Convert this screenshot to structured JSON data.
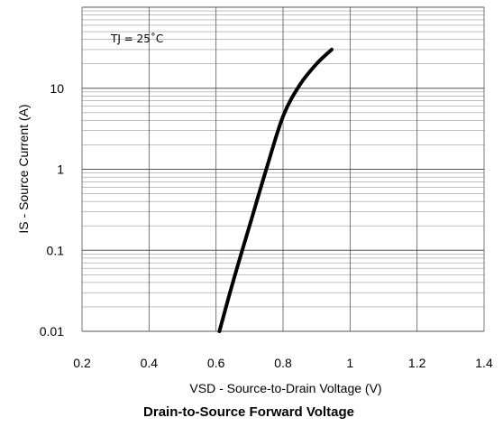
{
  "chart_data": {
    "type": "line",
    "title": "Drain-to-Source Forward Voltage",
    "xlabel": "VSD - Source-to-Drain Voltage (V)",
    "ylabel": "IS - Source Current (A)",
    "xlim": [
      0.2,
      1.4
    ],
    "ylim": [
      0.01,
      100
    ],
    "y_scale": "log",
    "grid": true,
    "x_ticks": [
      0.2,
      0.4,
      0.6,
      0.8,
      1.0,
      1.2,
      1.4
    ],
    "x_tick_labels": [
      "0.2",
      "0.4",
      "0.6",
      "0.8",
      "1",
      "1.2",
      "1.4"
    ],
    "y_ticks": [
      0.01,
      0.1,
      1,
      10
    ],
    "y_tick_labels": [
      "0.01",
      "0.1",
      "1",
      "10"
    ],
    "annotations": [
      {
        "text": "TJ = 25˚C"
      }
    ],
    "series": [
      {
        "color": "#000000",
        "x": [
          0.61,
          0.65,
          0.7,
          0.75,
          0.8,
          0.85,
          0.9,
          0.945
        ],
        "y": [
          0.01,
          0.04,
          0.2,
          1.0,
          4.5,
          11,
          20,
          30
        ]
      }
    ]
  }
}
